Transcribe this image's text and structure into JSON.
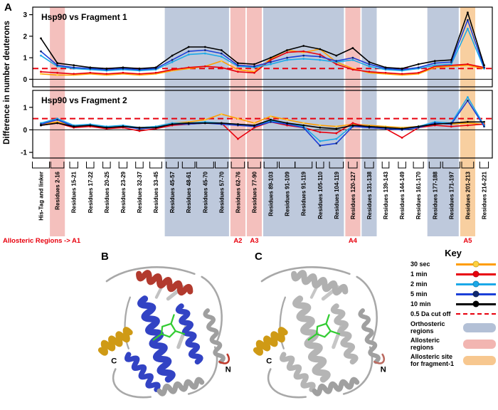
{
  "figure": {
    "panel_a_label": "A",
    "panel_b_label": "B",
    "panel_c_label": "C"
  },
  "chart_data": {
    "type": "line",
    "ylabel": "Difference in number deuterons",
    "categories": [
      "His-Tag and linker",
      "Residues 2-16",
      "Residues 15-21",
      "Residues 17-22",
      "Residues 20-25",
      "Residues 23-29",
      "Residues 32-37",
      "Residues 33-45",
      "Residues 45-57",
      "Residues 48-61",
      "Residues 45-70",
      "Residues 57-70",
      "Residues 62-76",
      "Residues 77-90",
      "Residues 89-103",
      "Residues 91-109",
      "Residues 91-119",
      "Residues 105-110",
      "Residues 104-119",
      "Residues 120-127",
      "Residues 131-138",
      "Residues 139-143",
      "Residues 144-149",
      "Residues 161-170",
      "Residues 177-188",
      "Residues 171-197",
      "Residues 201-213",
      "Residues 214-221"
    ],
    "charts": [
      {
        "title": "Hsp90 vs Fragment 1",
        "ylim": [
          -0.35,
          3.35
        ],
        "yticks": [
          0,
          1,
          2,
          3
        ],
        "cutoff": 0.5,
        "series": [
          {
            "name": "30 sec",
            "color": "#ff9d00",
            "marker": "#ffd23f",
            "values": [
              0.25,
              0.2,
              0.2,
              0.25,
              0.2,
              0.25,
              0.2,
              0.25,
              0.4,
              0.5,
              0.6,
              0.85,
              0.45,
              0.35,
              0.95,
              1.35,
              1.25,
              1.4,
              0.8,
              0.5,
              0.3,
              0.25,
              0.2,
              0.25,
              0.55,
              0.6,
              0.65,
              0.5
            ]
          },
          {
            "name": "1 min",
            "color": "#e8000d",
            "marker": "#e8000d",
            "values": [
              0.35,
              0.3,
              0.25,
              0.3,
              0.25,
              0.3,
              0.25,
              0.3,
              0.45,
              0.55,
              0.6,
              0.55,
              0.35,
              0.3,
              0.9,
              1.25,
              1.3,
              1.15,
              0.7,
              0.45,
              0.35,
              0.3,
              0.25,
              0.3,
              0.6,
              0.65,
              0.7,
              0.55
            ]
          },
          {
            "name": "2 min",
            "color": "#1ca9e8",
            "marker": "#1ca9e8",
            "values": [
              1.1,
              0.6,
              0.5,
              0.45,
              0.4,
              0.45,
              0.4,
              0.45,
              0.8,
              1.15,
              1.2,
              1.05,
              0.6,
              0.55,
              0.7,
              0.9,
              0.95,
              0.9,
              0.8,
              0.9,
              0.6,
              0.45,
              0.4,
              0.5,
              0.65,
              0.7,
              2.35,
              0.5
            ]
          },
          {
            "name": "5 min",
            "color": "#1b3fd8",
            "marker": "#10286e",
            "values": [
              1.3,
              0.65,
              0.55,
              0.5,
              0.45,
              0.5,
              0.45,
              0.5,
              0.9,
              1.3,
              1.35,
              1.2,
              0.65,
              0.6,
              0.8,
              1.0,
              1.1,
              1.05,
              0.85,
              1.0,
              0.7,
              0.5,
              0.45,
              0.55,
              0.75,
              0.8,
              2.75,
              0.55
            ]
          },
          {
            "name": "10 min",
            "color": "#000000",
            "marker": "#000000",
            "values": [
              1.9,
              0.75,
              0.65,
              0.55,
              0.5,
              0.55,
              0.5,
              0.55,
              1.1,
              1.5,
              1.5,
              1.35,
              0.75,
              0.7,
              1.0,
              1.35,
              1.55,
              1.4,
              1.1,
              1.45,
              0.8,
              0.55,
              0.5,
              0.7,
              0.85,
              0.9,
              3.1,
              0.65
            ]
          }
        ]
      },
      {
        "title": "Hsp90 vs Fragment 2",
        "ylim": [
          -1.25,
          1.75
        ],
        "yticks": [
          -1,
          0,
          1
        ],
        "cutoff": 0.5,
        "series": [
          {
            "name": "30 sec",
            "color": "#ff9d00",
            "marker": "#ffd23f",
            "values": [
              0.25,
              0.35,
              0.2,
              0.15,
              0.1,
              0.15,
              0.1,
              0.15,
              0.3,
              0.35,
              0.45,
              0.7,
              0.5,
              0.3,
              0.6,
              0.45,
              0.3,
              0.2,
              0.15,
              0.25,
              0.2,
              0.15,
              0.1,
              0.15,
              0.3,
              0.25,
              0.3,
              0.25
            ]
          },
          {
            "name": "1 min",
            "color": "#e8000d",
            "marker": "#e8000d",
            "values": [
              0.2,
              0.3,
              0.1,
              0.15,
              0.05,
              0.1,
              -0.05,
              0.05,
              0.2,
              0.25,
              0.3,
              0.3,
              -0.4,
              0.1,
              0.35,
              0.2,
              0.1,
              -0.1,
              -0.15,
              0.3,
              0.1,
              0.05,
              -0.35,
              0.1,
              0.2,
              0.15,
              0.2,
              0.25
            ]
          },
          {
            "name": "2 min",
            "color": "#1ca9e8",
            "marker": "#1ca9e8",
            "values": [
              0.3,
              0.5,
              0.2,
              0.25,
              0.15,
              0.2,
              0.1,
              0.15,
              0.3,
              0.3,
              0.35,
              0.3,
              0.25,
              0.2,
              0.4,
              0.3,
              0.15,
              -0.5,
              -0.4,
              0.2,
              0.15,
              0.1,
              0.05,
              0.15,
              0.35,
              0.3,
              1.45,
              0.2
            ]
          },
          {
            "name": "5 min",
            "color": "#1b3fd8",
            "marker": "#10286e",
            "values": [
              0.25,
              0.45,
              0.15,
              0.2,
              0.1,
              0.15,
              0.05,
              0.1,
              0.25,
              0.25,
              0.3,
              0.25,
              0.2,
              0.15,
              0.35,
              0.25,
              0.1,
              -0.7,
              -0.6,
              0.15,
              0.1,
              0.05,
              0.0,
              0.1,
              0.3,
              0.25,
              1.3,
              0.15
            ]
          },
          {
            "name": "10 min",
            "color": "#000000",
            "marker": "#000000",
            "values": [
              0.2,
              0.3,
              0.15,
              0.2,
              0.1,
              0.15,
              0.1,
              0.1,
              0.25,
              0.3,
              0.3,
              0.3,
              0.25,
              0.2,
              0.45,
              0.3,
              0.2,
              0.1,
              0.05,
              0.2,
              0.15,
              0.1,
              0.05,
              0.15,
              0.25,
              0.3,
              0.35,
              0.35
            ]
          }
        ]
      }
    ],
    "regions": {
      "orthosteric": {
        "color": "#b3c0d6",
        "spans": [
          [
            8,
            11
          ],
          [
            14,
            18
          ],
          [
            20,
            20
          ],
          [
            24,
            25
          ]
        ]
      },
      "allosteric": {
        "color": "#f2b5b1",
        "spans": [
          [
            1,
            1
          ],
          [
            12,
            12
          ],
          [
            13,
            13
          ],
          [
            19,
            19
          ]
        ]
      },
      "fragment1_site": {
        "color": "#f7c78f",
        "spans": [
          [
            26,
            26
          ]
        ]
      }
    },
    "region_labels": {
      "color": "#e8000d",
      "prefix": "Allosteric Regions -> A1",
      "items": [
        {
          "text": "A2",
          "cat": 12
        },
        {
          "text": "A3",
          "cat": 13
        },
        {
          "text": "A4",
          "cat": 19
        },
        {
          "text": "A5",
          "cat": 26
        }
      ]
    }
  },
  "key": {
    "title": "Key",
    "line_items": [
      {
        "label": "30 sec",
        "color": "#ff9d00",
        "marker": "#ffd23f",
        "dashed": false
      },
      {
        "label": "1 min",
        "color": "#e8000d",
        "marker": "#e8000d",
        "dashed": false
      },
      {
        "label": "2 min",
        "color": "#1ca9e8",
        "marker": "#1ca9e8",
        "dashed": false
      },
      {
        "label": "5 min",
        "color": "#1b3fd8",
        "marker": "#10286e",
        "dashed": false
      },
      {
        "label": "10 min",
        "color": "#000000",
        "marker": "#000000",
        "dashed": false
      },
      {
        "label": "0.5 Da cut off",
        "color": "#e8000d",
        "marker": null,
        "dashed": true
      }
    ],
    "swatch_items": [
      {
        "label": "Orthosteric regions",
        "color": "#b3c0d6"
      },
      {
        "label": "Allosteric regions",
        "color": "#f2b5b1"
      },
      {
        "label": "Allosteric site for fragment-1",
        "color": "#f7c78f"
      }
    ]
  },
  "structures": {
    "b": {
      "c_terminus": "C",
      "n_terminus": "N",
      "colors": {
        "helix_main": "#3243c4",
        "helix_top": "#b23a2e",
        "helix_gold": "#cf9a15",
        "back_helix": "#9f9f9f",
        "loops": "#a8a8a8",
        "sheets": "#c2c2c2",
        "ligand": "#33cc33",
        "n_tail": "#c0392b"
      }
    },
    "c": {
      "c_terminus": "C",
      "n_terminus": "N",
      "colors": {
        "helix_main": "#b5b5b5",
        "helix_top": "#b0b0b0",
        "helix_gold": "#cf9a15",
        "back_helix": "#a0a0a0",
        "loops": "#a8a8a8",
        "sheets": "#c6c6c6",
        "ligand": "#33cc33",
        "n_tail": "#bb6a60"
      }
    }
  }
}
